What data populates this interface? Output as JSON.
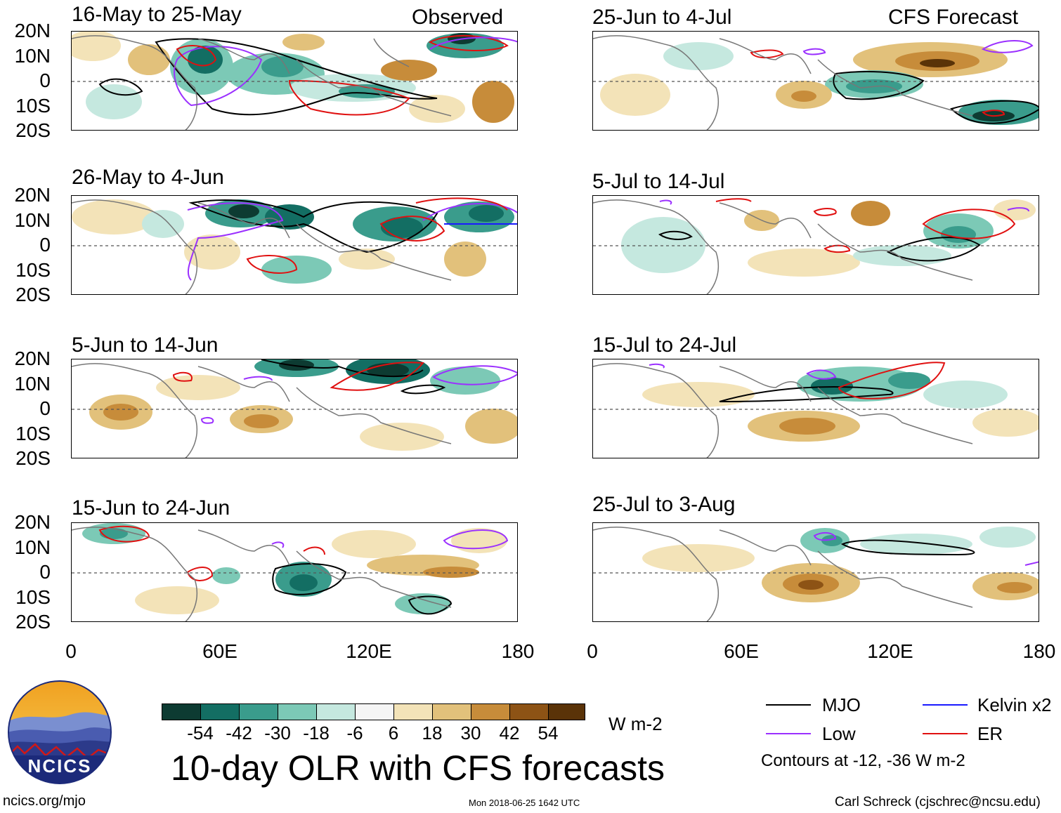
{
  "header": {
    "observed_label": "Observed",
    "forecast_label": "CFS Forecast"
  },
  "panels": [
    {
      "title": "16-May to 25-May",
      "column": "observed"
    },
    {
      "title": "26-May to 4-Jun",
      "column": "observed"
    },
    {
      "title": "5-Jun to 14-Jun",
      "column": "observed"
    },
    {
      "title": "15-Jun to 24-Jun",
      "column": "observed"
    },
    {
      "title": "25-Jun to 4-Jul",
      "column": "forecast"
    },
    {
      "title": "5-Jul to 14-Jul",
      "column": "forecast"
    },
    {
      "title": "15-Jul to 24-Jul",
      "column": "forecast"
    },
    {
      "title": "25-Jul to 3-Aug",
      "column": "forecast"
    }
  ],
  "axes": {
    "y_ticks": [
      "20N",
      "10N",
      "0",
      "10S",
      "20S"
    ],
    "x_ticks": [
      "0",
      "60E",
      "120E",
      "180"
    ]
  },
  "colorbar": {
    "colors": [
      "#0d3b32",
      "#136e63",
      "#3a9c8c",
      "#7cc9b6",
      "#c5e8df",
      "#f5f5f5",
      "#f3e3b8",
      "#e2c17b",
      "#c78c3a",
      "#8d5315",
      "#5a3308"
    ],
    "labels": [
      "-54",
      "-42",
      "-30",
      "-18",
      "-6",
      "6",
      "18",
      "30",
      "42",
      "54"
    ],
    "units": "W m-2"
  },
  "main_title": "10-day OLR with CFS forecasts",
  "legend": {
    "items": [
      {
        "label": "MJO",
        "color": "#000000"
      },
      {
        "label": "Kelvin x2",
        "color": "#1a1aff"
      },
      {
        "label": "Low",
        "color": "#9b30ff"
      },
      {
        "label": "ER",
        "color": "#e01010"
      }
    ],
    "contour_note": "Contours at -12, -36 W m-2"
  },
  "footer": {
    "logo_text": "NCICS",
    "url": "ncics.org/mjo",
    "timestamp": "Mon 2018-06-25 1642 UTC",
    "credit": "Carl Schreck (cjschrec@ncsu.edu)"
  }
}
